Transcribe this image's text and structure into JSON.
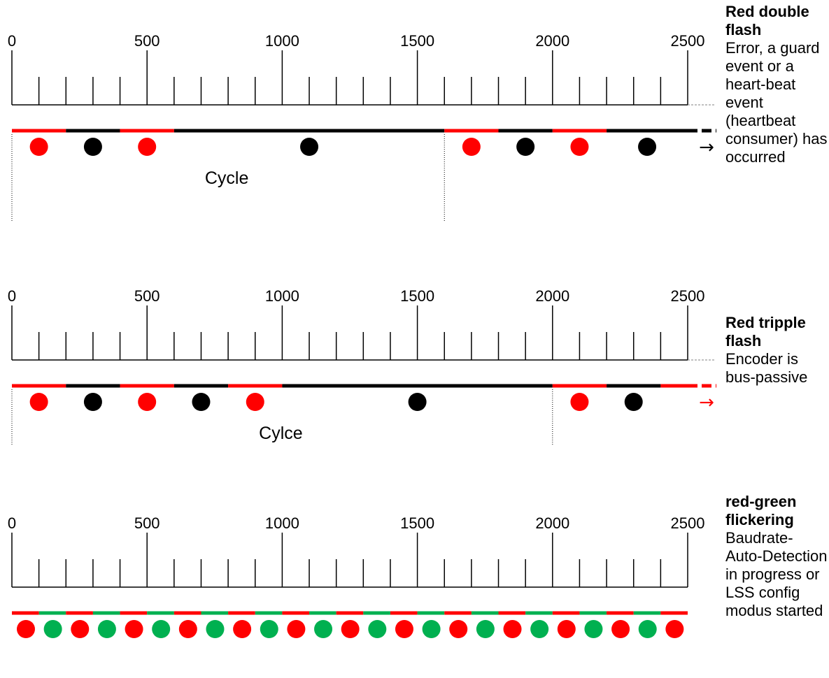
{
  "colors": {
    "red": "#ff0000",
    "black": "#000000",
    "green": "#00b050",
    "axis": "#000000"
  },
  "axis_ticks": [
    "0",
    "500",
    "1000",
    "1500",
    "2000",
    "2500"
  ],
  "panels": [
    {
      "id": "red-double-flash",
      "title": "Red double flash",
      "description": "Error, a guard event or a heart-beat event (heartbeat consumer) has occurred",
      "cycle_label": "Cycle",
      "cycle_ms": 1600,
      "segments": [
        {
          "from": 0,
          "to": 200,
          "color": "red"
        },
        {
          "from": 200,
          "to": 400,
          "color": "black"
        },
        {
          "from": 400,
          "to": 600,
          "color": "red"
        },
        {
          "from": 600,
          "to": 1600,
          "color": "black"
        },
        {
          "from": 1600,
          "to": 1800,
          "color": "red"
        },
        {
          "from": 1800,
          "to": 2000,
          "color": "black"
        },
        {
          "from": 2000,
          "to": 2200,
          "color": "red"
        },
        {
          "from": 2200,
          "to": 2500,
          "color": "black"
        }
      ],
      "continuation_color": "black",
      "dots": [
        {
          "t": 100,
          "color": "red"
        },
        {
          "t": 300,
          "color": "black"
        },
        {
          "t": 500,
          "color": "red"
        },
        {
          "t": 1100,
          "color": "black"
        },
        {
          "t": 1700,
          "color": "red"
        },
        {
          "t": 1900,
          "color": "black"
        },
        {
          "t": 2100,
          "color": "red"
        },
        {
          "t": 2350,
          "color": "black"
        }
      ],
      "arrow": "→",
      "arrow_color": "black",
      "boundaries": [
        0,
        1600
      ]
    },
    {
      "id": "red-tripple-flash",
      "title": "Red tripple flash",
      "description": "Encoder is bus-passive",
      "cycle_label": "Cylce",
      "cycle_ms": 2000,
      "segments": [
        {
          "from": 0,
          "to": 200,
          "color": "red"
        },
        {
          "from": 200,
          "to": 400,
          "color": "black"
        },
        {
          "from": 400,
          "to": 600,
          "color": "red"
        },
        {
          "from": 600,
          "to": 800,
          "color": "black"
        },
        {
          "from": 800,
          "to": 1000,
          "color": "red"
        },
        {
          "from": 1000,
          "to": 2000,
          "color": "black"
        },
        {
          "from": 2000,
          "to": 2200,
          "color": "red"
        },
        {
          "from": 2200,
          "to": 2400,
          "color": "black"
        },
        {
          "from": 2400,
          "to": 2500,
          "color": "red"
        }
      ],
      "continuation_color": "red",
      "dots": [
        {
          "t": 100,
          "color": "red"
        },
        {
          "t": 300,
          "color": "black"
        },
        {
          "t": 500,
          "color": "red"
        },
        {
          "t": 700,
          "color": "black"
        },
        {
          "t": 900,
          "color": "red"
        },
        {
          "t": 1500,
          "color": "black"
        },
        {
          "t": 2100,
          "color": "red"
        },
        {
          "t": 2300,
          "color": "black"
        }
      ],
      "arrow": "→",
      "arrow_color": "red",
      "boundaries": [
        0,
        2000
      ]
    },
    {
      "id": "red-green-flickering",
      "title": "red-green flickering",
      "description": "Baudrate-Auto-Detection in progress or LSS config modus started",
      "cycle_label": "",
      "period_ms": 100,
      "dot_count": 25,
      "alternating_colors": [
        "red",
        "green"
      ]
    }
  ]
}
